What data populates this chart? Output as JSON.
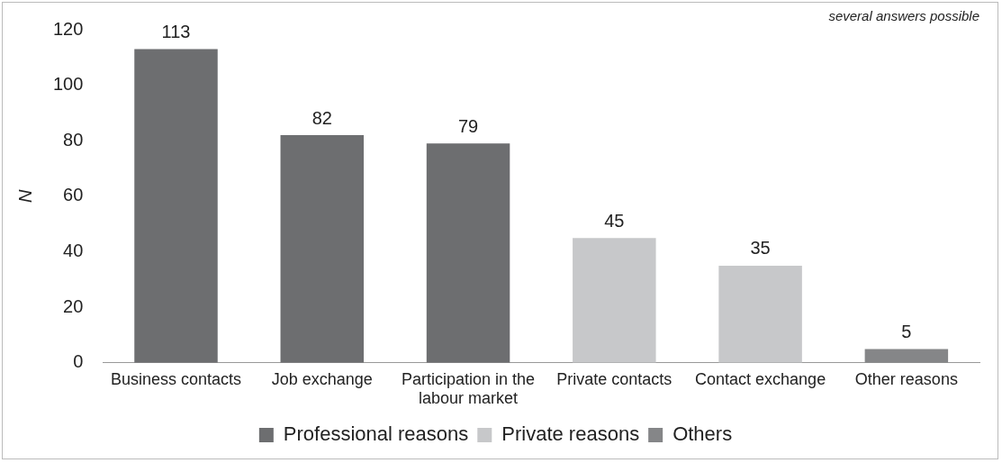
{
  "chart_data": {
    "type": "bar",
    "ylabel": "N",
    "categories": [
      "Business contacts",
      "Job exchange",
      "Participation in the labour market",
      "Private contacts",
      "Contact exchange",
      "Other reasons"
    ],
    "series": [
      {
        "name": "Professional reasons",
        "color": "#6d6e70",
        "values": [
          113,
          82,
          79,
          null,
          null,
          null
        ]
      },
      {
        "name": "Private reasons",
        "color": "#c7c8ca",
        "values": [
          null,
          null,
          null,
          45,
          35,
          null
        ]
      },
      {
        "name": "Others",
        "color": "#858688",
        "values": [
          null,
          null,
          null,
          null,
          null,
          5
        ]
      }
    ],
    "ylim": [
      0,
      120
    ],
    "yticks": [
      0,
      20,
      40,
      60,
      80,
      100,
      120
    ],
    "grid": false,
    "legend": "bottom",
    "data_labels": true,
    "annotations": [
      "several answers possible"
    ]
  }
}
